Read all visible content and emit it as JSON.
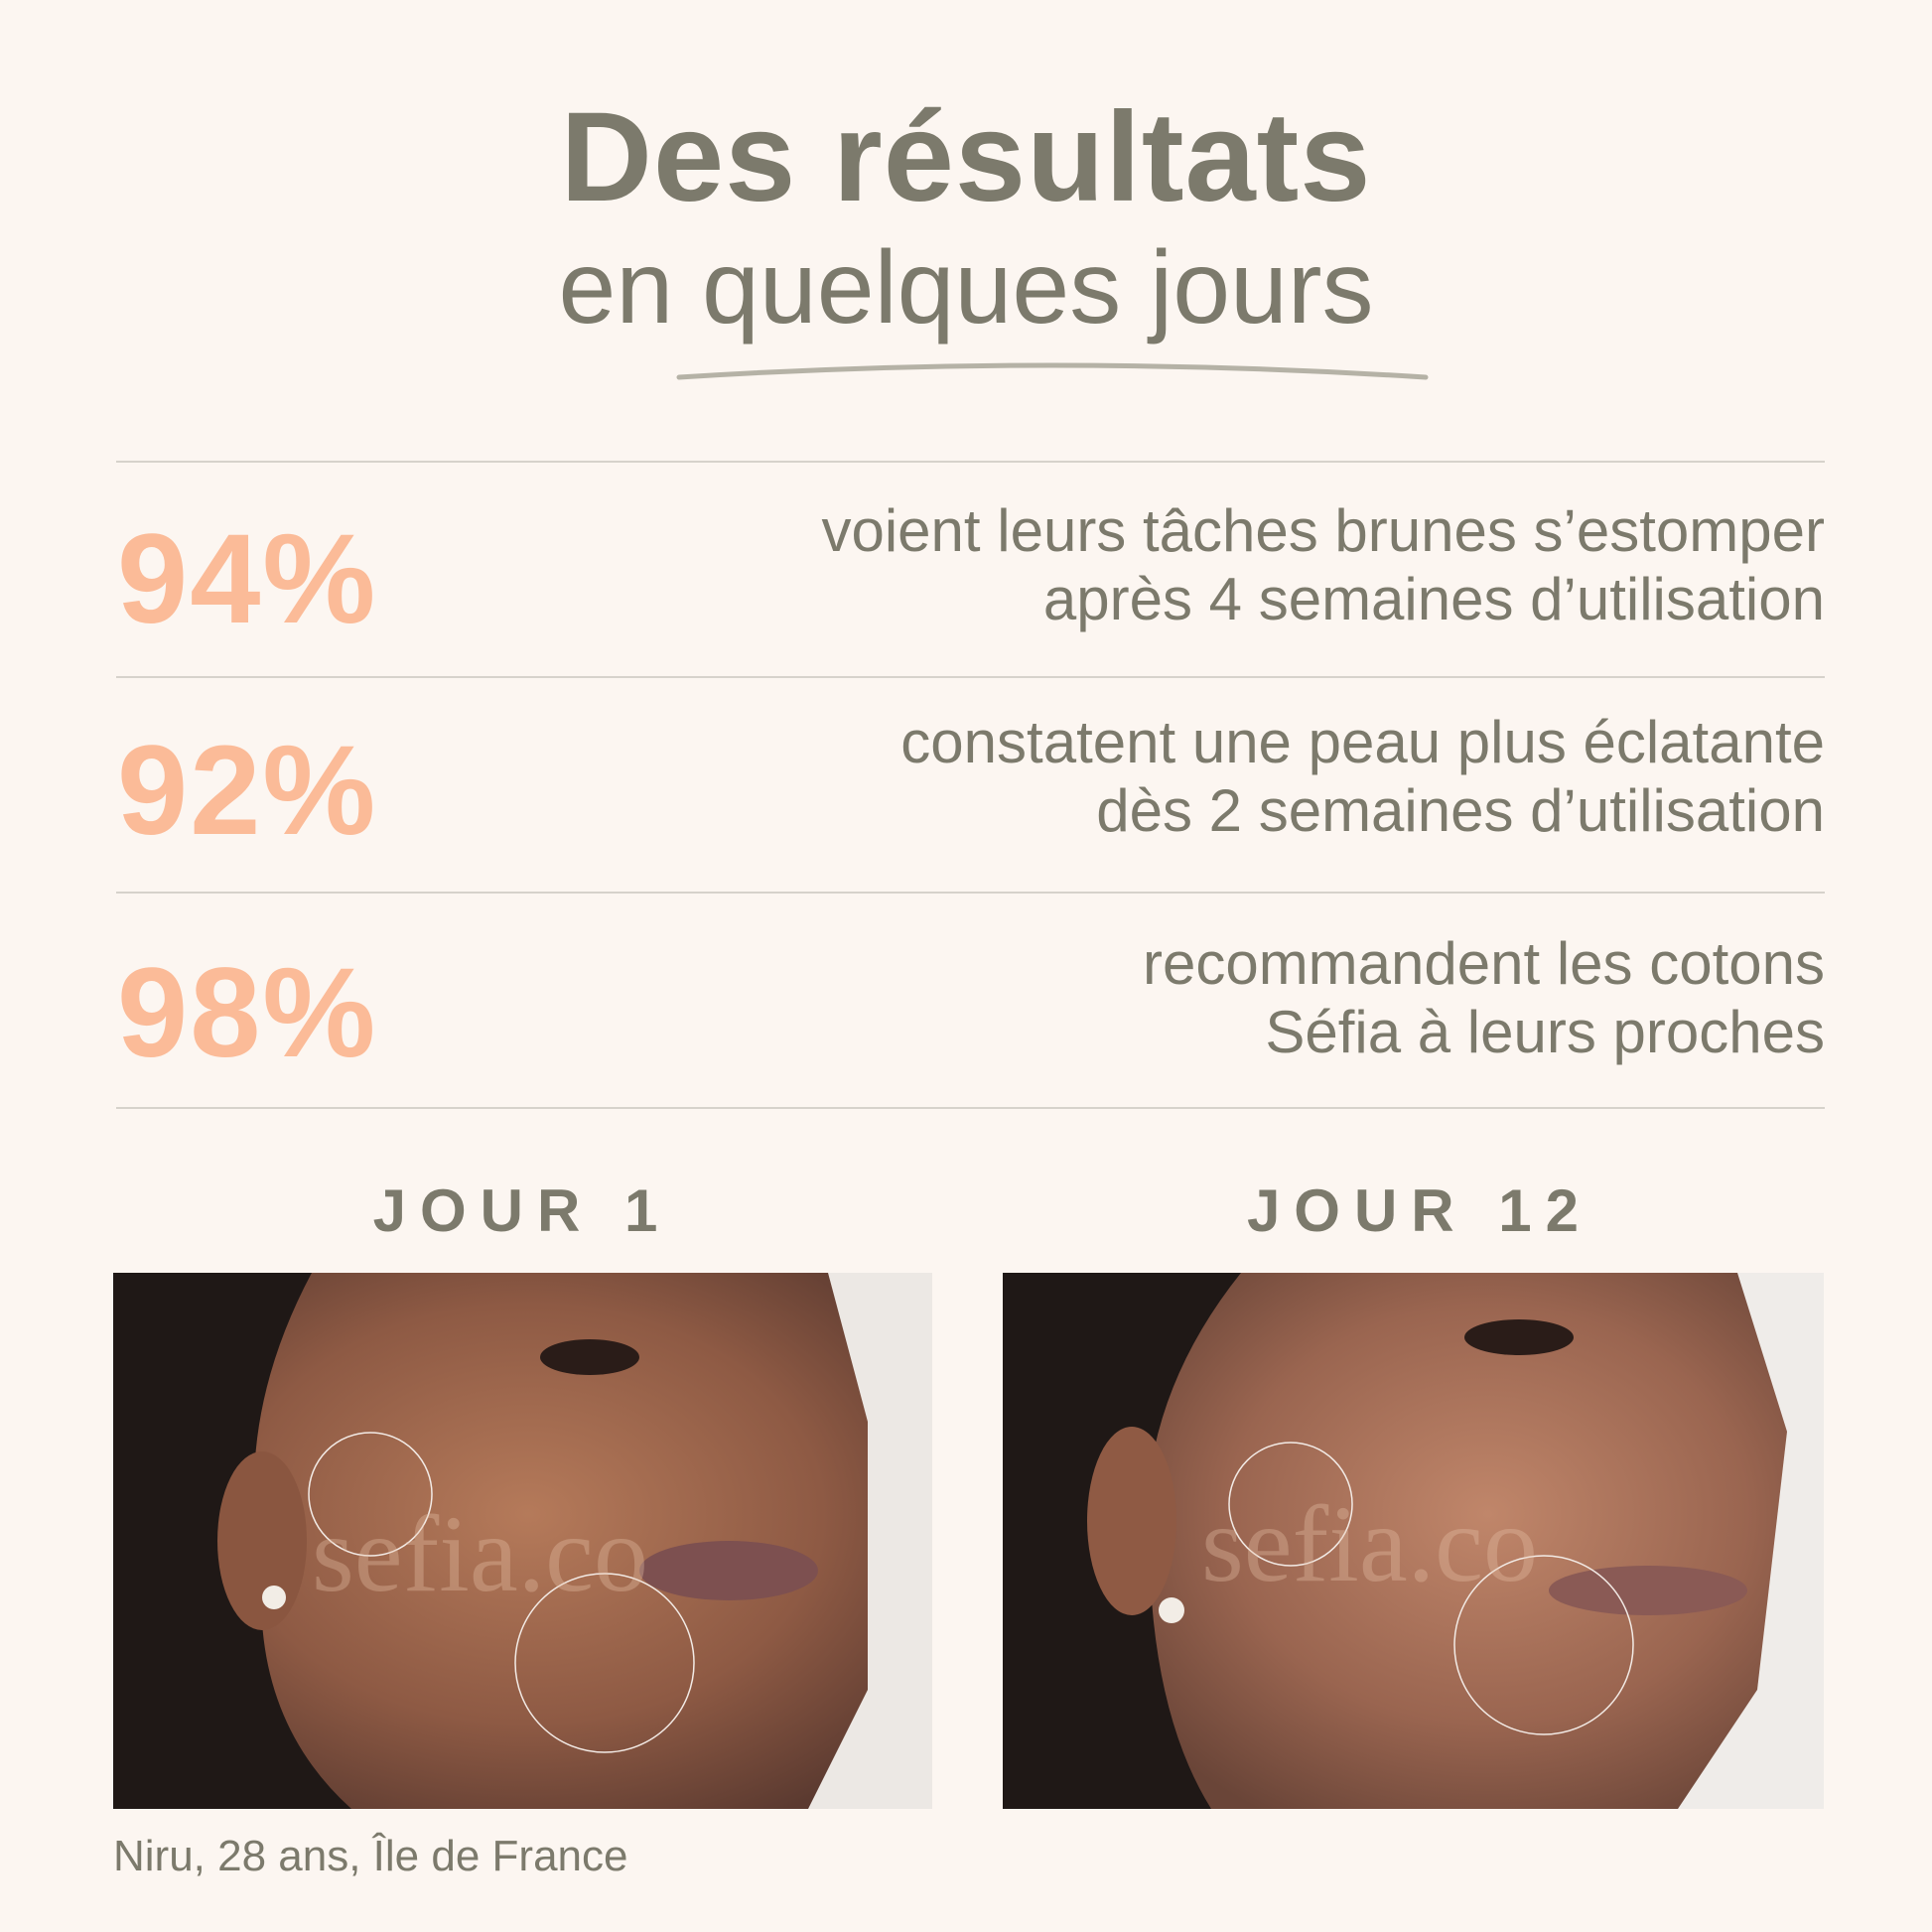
{
  "header": {
    "title": "Des résultats",
    "subtitle": "en quelques jours"
  },
  "stats": [
    {
      "percent": "94%",
      "line1": "voient leurs tâches brunes s’estomper",
      "line2": "après 4 semaines d’utilisation"
    },
    {
      "percent": "92%",
      "line1": "constatent une peau plus éclatante",
      "line2": "dès 2 semaines d’utilisation"
    },
    {
      "percent": "98%",
      "line1": "recommandent les cotons",
      "line2": "Séfia à leurs proches"
    }
  ],
  "comparison": {
    "before_label": "JOUR 1",
    "after_label": "JOUR 12",
    "watermark": "sefia.co",
    "caption": "Niru, 28 ans, Île de France"
  },
  "colors": {
    "background": "#fcf6f1",
    "text": "#7c7a6c",
    "accent": "#fbbb98"
  }
}
